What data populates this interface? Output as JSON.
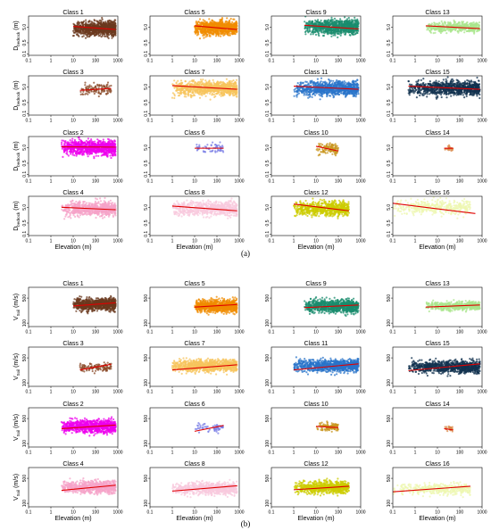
{
  "chart_data": [
    {
      "part": "(a)",
      "type": "scatter",
      "xlabel": "Elevation (m)",
      "ylabel_main": "D",
      "ylabel_sub": "bedrock",
      "ylabel_unit": "(m)",
      "x_scale": "log",
      "y_scale": "log",
      "xlim": [
        0.1,
        1000
      ],
      "ylim": [
        0.08,
        25
      ],
      "x_ticks": [
        "0.1",
        "1",
        "10",
        "100",
        "1000"
      ],
      "y_ticks": [
        "0.1",
        "0.5",
        "5.0"
      ],
      "y_tick_values": [
        0.1,
        0.5,
        5
      ],
      "panels": [
        {
          "class": "Class 1",
          "color": "#6b3a1f",
          "x_range": [
            10,
            800
          ],
          "y_center": 4,
          "y_spread": 0.45,
          "line": [
            [
              10,
              5.5
            ],
            [
              800,
              3.5
            ]
          ]
        },
        {
          "class": "Class 5",
          "color": "#f08c00",
          "x_range": [
            10,
            800
          ],
          "y_center": 4.5,
          "y_spread": 0.45,
          "line": [
            [
              10,
              6
            ],
            [
              800,
              3.5
            ]
          ]
        },
        {
          "class": "Class 9",
          "color": "#1a8c6e",
          "x_range": [
            3,
            800
          ],
          "y_center": 5,
          "y_spread": 0.45,
          "line": [
            [
              3,
              6.5
            ],
            [
              800,
              3.8
            ]
          ]
        },
        {
          "class": "Class 13",
          "color": "#a9e58c",
          "x_range": [
            3,
            800
          ],
          "y_center": 5,
          "y_spread": 0.3,
          "line": [
            [
              3,
              6
            ],
            [
              800,
              4
            ]
          ]
        },
        {
          "class": "Class 3",
          "color": "#8b4b2a",
          "x_range": [
            20,
            500
          ],
          "y_center": 3.5,
          "y_spread": 0.35,
          "line": [
            [
              20,
              3
            ],
            [
              500,
              4
            ]
          ]
        },
        {
          "class": "Class 7",
          "color": "#f7c45c",
          "x_range": [
            1,
            800
          ],
          "y_center": 4,
          "y_spread": 0.45,
          "line": [
            [
              1,
              6
            ],
            [
              800,
              3.5
            ]
          ]
        },
        {
          "class": "Class 11",
          "color": "#2a74c9",
          "x_range": [
            1,
            800
          ],
          "y_center": 4,
          "y_spread": 0.45,
          "line": [
            [
              1,
              5.5
            ],
            [
              800,
              3.5
            ]
          ]
        },
        {
          "class": "Class 15",
          "color": "#12324f",
          "x_range": [
            0.5,
            800
          ],
          "y_center": 4,
          "y_spread": 0.45,
          "line": [
            [
              0.5,
              5.5
            ],
            [
              800,
              3.5
            ]
          ]
        },
        {
          "class": "Class 2",
          "color": "#ee00ee",
          "x_range": [
            3,
            800
          ],
          "y_center": 5,
          "y_spread": 0.45,
          "line": [
            [
              3,
              5.5
            ],
            [
              800,
              5.3
            ]
          ]
        },
        {
          "class": "Class 6",
          "color": "#7a7ee6",
          "x_range": [
            10,
            200
          ],
          "y_center": 4.5,
          "y_spread": 0.3,
          "line": [
            [
              10,
              4.5
            ],
            [
              200,
              4.5
            ]
          ]
        },
        {
          "class": "Class 10",
          "color": "#c8961e",
          "x_range": [
            10,
            100
          ],
          "y_center": 4,
          "y_spread": 0.35,
          "line": [
            [
              10,
              6
            ],
            [
              100,
              3
            ]
          ]
        },
        {
          "class": "Class 14",
          "color": "#d9894a",
          "x_range": [
            20,
            50
          ],
          "y_center": 4.5,
          "y_spread": 0.2,
          "line": [
            [
              20,
              4.5
            ],
            [
              50,
              4.5
            ]
          ]
        },
        {
          "class": "Class 4",
          "color": "#f5a3c8",
          "x_range": [
            3,
            800
          ],
          "y_center": 4,
          "y_spread": 0.45,
          "line": [
            [
              3,
              5
            ],
            [
              800,
              3.5
            ]
          ]
        },
        {
          "class": "Class 8",
          "color": "#f8c9dd",
          "x_range": [
            1,
            800
          ],
          "y_center": 4,
          "y_spread": 0.45,
          "line": [
            [
              1,
              6
            ],
            [
              800,
              3
            ]
          ]
        },
        {
          "class": "Class 12",
          "color": "#cccc00",
          "x_range": [
            1,
            300
          ],
          "y_center": 4,
          "y_spread": 0.45,
          "line": [
            [
              1,
              8
            ],
            [
              300,
              3
            ]
          ]
        },
        {
          "class": "Class 16",
          "color": "#eef7b0",
          "x_range": [
            0.1,
            300
          ],
          "y_center": 5,
          "y_spread": 0.45,
          "line": [
            [
              0.1,
              9
            ],
            [
              500,
              2
            ]
          ]
        }
      ]
    },
    {
      "part": "(b)",
      "type": "scatter",
      "xlabel": "Elevation (m)",
      "ylabel_main": "V",
      "ylabel_sub": "Soil",
      "ylabel_unit": "(m/s)",
      "x_scale": "log",
      "y_scale": "log",
      "xlim": [
        0.1,
        1000
      ],
      "ylim": [
        80,
        1000
      ],
      "x_ticks": [
        "0.1",
        "1",
        "10",
        "100",
        "1000"
      ],
      "y_ticks": [
        "100",
        "500"
      ],
      "y_tick_values": [
        100,
        500
      ],
      "panels": [
        {
          "class": "Class 1",
          "color": "#6b3a1f",
          "x_range": [
            10,
            800
          ],
          "y_center": 330,
          "y_spread": 0.17,
          "line": [
            [
              10,
              300
            ],
            [
              800,
              370
            ]
          ]
        },
        {
          "class": "Class 5",
          "color": "#f08c00",
          "x_range": [
            10,
            800
          ],
          "y_center": 300,
          "y_spread": 0.17,
          "line": [
            [
              10,
              280
            ],
            [
              800,
              330
            ]
          ]
        },
        {
          "class": "Class 9",
          "color": "#1a8c6e",
          "x_range": [
            3,
            800
          ],
          "y_center": 300,
          "y_spread": 0.17,
          "line": [
            [
              3,
              270
            ],
            [
              800,
              320
            ]
          ]
        },
        {
          "class": "Class 13",
          "color": "#a9e58c",
          "x_range": [
            3,
            800
          ],
          "y_center": 300,
          "y_spread": 0.12,
          "line": [
            [
              3,
              280
            ],
            [
              800,
              320
            ]
          ]
        },
        {
          "class": "Class 3",
          "color": "#8b4b2a",
          "x_range": [
            20,
            500
          ],
          "y_center": 270,
          "y_spread": 0.12,
          "line": [
            [
              20,
              230
            ],
            [
              500,
              330
            ]
          ]
        },
        {
          "class": "Class 7",
          "color": "#f7c45c",
          "x_range": [
            1,
            800
          ],
          "y_center": 300,
          "y_spread": 0.17,
          "line": [
            [
              1,
              230
            ],
            [
              800,
              320
            ]
          ]
        },
        {
          "class": "Class 11",
          "color": "#2a74c9",
          "x_range": [
            1,
            800
          ],
          "y_center": 300,
          "y_spread": 0.17,
          "line": [
            [
              1,
              230
            ],
            [
              800,
              340
            ]
          ]
        },
        {
          "class": "Class 15",
          "color": "#12324f",
          "x_range": [
            0.5,
            800
          ],
          "y_center": 280,
          "y_spread": 0.17,
          "line": [
            [
              0.5,
              220
            ],
            [
              800,
              340
            ]
          ]
        },
        {
          "class": "Class 2",
          "color": "#ee00ee",
          "x_range": [
            3,
            800
          ],
          "y_center": 300,
          "y_spread": 0.17,
          "line": [
            [
              3,
              260
            ],
            [
              800,
              330
            ]
          ]
        },
        {
          "class": "Class 6",
          "color": "#7a7ee6",
          "x_range": [
            10,
            200
          ],
          "y_center": 260,
          "y_spread": 0.12,
          "line": [
            [
              10,
              220
            ],
            [
              200,
              320
            ]
          ]
        },
        {
          "class": "Class 10",
          "color": "#c8961e",
          "x_range": [
            10,
            100
          ],
          "y_center": 290,
          "y_spread": 0.12,
          "line": [
            [
              10,
              300
            ],
            [
              100,
              280
            ]
          ]
        },
        {
          "class": "Class 14",
          "color": "#d9894a",
          "x_range": [
            20,
            50
          ],
          "y_center": 250,
          "y_spread": 0.08,
          "line": [
            [
              20,
              260
            ],
            [
              50,
              240
            ]
          ]
        },
        {
          "class": "Class 4",
          "color": "#f5a3c8",
          "x_range": [
            3,
            800
          ],
          "y_center": 280,
          "y_spread": 0.17,
          "line": [
            [
              3,
              230
            ],
            [
              800,
              320
            ]
          ]
        },
        {
          "class": "Class 8",
          "color": "#f8c9dd",
          "x_range": [
            1,
            800
          ],
          "y_center": 260,
          "y_spread": 0.17,
          "line": [
            [
              1,
              220
            ],
            [
              800,
              310
            ]
          ]
        },
        {
          "class": "Class 12",
          "color": "#cccc00",
          "x_range": [
            1,
            300
          ],
          "y_center": 280,
          "y_spread": 0.17,
          "line": [
            [
              1,
              240
            ],
            [
              300,
              300
            ]
          ]
        },
        {
          "class": "Class 16",
          "color": "#eef7b0",
          "x_range": [
            0.1,
            300
          ],
          "y_center": 250,
          "y_spread": 0.15,
          "line": [
            [
              0.1,
              210
            ],
            [
              300,
              300
            ]
          ]
        }
      ]
    }
  ],
  "fit_line_color": "#e00000"
}
